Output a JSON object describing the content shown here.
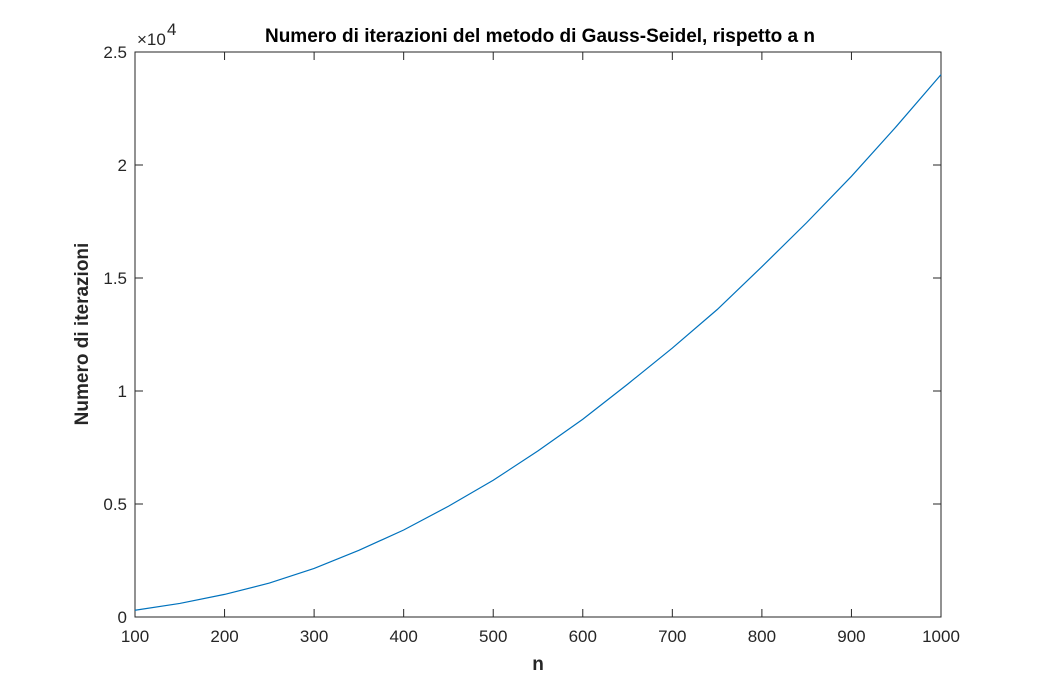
{
  "chart_data": {
    "type": "line",
    "title": "Numero di iterazioni del metodo di Gauss-Seidel, rispetto a n",
    "xlabel": "n",
    "ylabel": "Numero di iterazioni",
    "y_exponent_base": "×10",
    "y_exponent_power": "4",
    "xlim": [
      100,
      1000
    ],
    "ylim": [
      0,
      25000
    ],
    "x_ticks": [
      100,
      200,
      300,
      400,
      500,
      600,
      700,
      800,
      900,
      1000
    ],
    "x_tick_labels": [
      "100",
      "200",
      "300",
      "400",
      "500",
      "600",
      "700",
      "800",
      "900",
      "1000"
    ],
    "y_ticks": [
      0,
      5000,
      10000,
      15000,
      20000,
      25000
    ],
    "y_tick_labels": [
      "0",
      "0.5",
      "1",
      "1.5",
      "2",
      "2.5"
    ],
    "grid": false,
    "series": [
      {
        "color": "#0072bd",
        "x": [
          100,
          150,
          200,
          250,
          300,
          350,
          400,
          450,
          500,
          550,
          600,
          650,
          700,
          750,
          800,
          850,
          900,
          950,
          1000
        ],
        "y": [
          300,
          600,
          1000,
          1500,
          2150,
          2950,
          3850,
          4900,
          6050,
          7350,
          8750,
          10300,
          11900,
          13600,
          15500,
          17450,
          19500,
          21700,
          24000
        ]
      }
    ]
  }
}
